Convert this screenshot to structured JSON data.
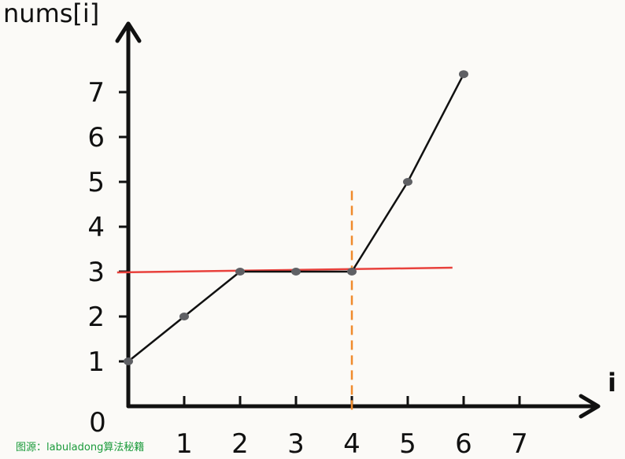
{
  "chart_data": {
    "type": "line",
    "xlabel": "i",
    "ylabel": "nums[i]",
    "origin_label": "0",
    "x_ticks": [
      "1",
      "2",
      "3",
      "4",
      "5",
      "6",
      "7"
    ],
    "y_ticks": [
      "1",
      "2",
      "3",
      "4",
      "5",
      "6",
      "7"
    ],
    "xlim": [
      0,
      7.5
    ],
    "ylim": [
      0,
      7.5
    ],
    "series": [
      {
        "color": "#111111",
        "points": [
          [
            0,
            1
          ],
          [
            1,
            2
          ],
          [
            2,
            3
          ],
          [
            3,
            3
          ],
          [
            4,
            3
          ],
          [
            5,
            5
          ],
          [
            6,
            7.4
          ]
        ]
      }
    ],
    "annotations": {
      "horizontal_line": {
        "y": 3,
        "x_from": -0.2,
        "x_to": 5.8,
        "color": "#e8413c"
      },
      "vertical_dashed_line": {
        "x": 4,
        "y_from": 0,
        "y_to": 4.8,
        "color": "#f08a2c"
      }
    }
  },
  "watermark": "图源：labuladong算法秘籍"
}
